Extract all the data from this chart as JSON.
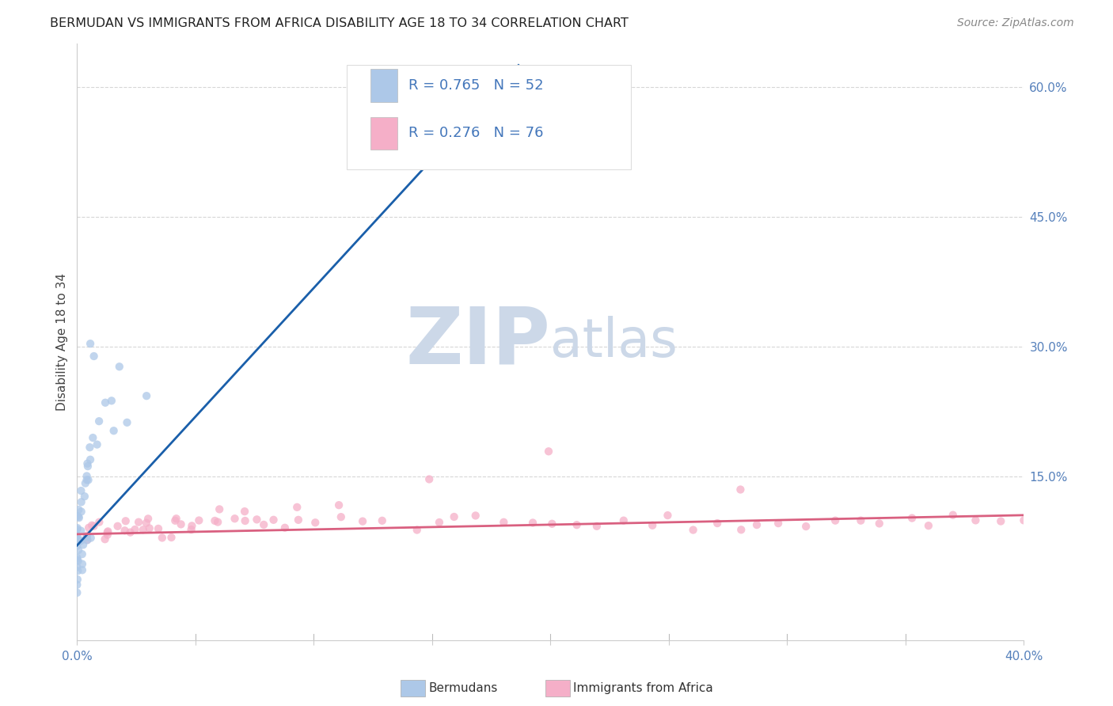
{
  "title": "BERMUDAN VS IMMIGRANTS FROM AFRICA DISABILITY AGE 18 TO 34 CORRELATION CHART",
  "source": "Source: ZipAtlas.com",
  "ylabel": "Disability Age 18 to 34",
  "legend_label_blue": "Bermudans",
  "legend_label_pink": "Immigrants from Africa",
  "R_blue": 0.765,
  "N_blue": 52,
  "R_pink": 0.276,
  "N_pink": 76,
  "color_blue": "#adc8e8",
  "color_pink": "#f5afc8",
  "line_color_blue": "#1a5faa",
  "line_color_pink": "#d96080",
  "background_color": "#ffffff",
  "grid_color": "#cccccc",
  "title_color": "#222222",
  "right_yticks": [
    "60.0%",
    "45.0%",
    "30.0%",
    "15.0%"
  ],
  "right_ytick_vals": [
    0.6,
    0.45,
    0.3,
    0.15
  ],
  "xmin": 0.0,
  "xmax": 0.4,
  "ymin": -0.04,
  "ymax": 0.65,
  "blue_line_x0": 0.0,
  "blue_line_x1": 0.1865,
  "blue_line_y0": 0.07,
  "blue_line_y1": 0.625,
  "pink_line_x0": 0.0,
  "pink_line_x1": 0.4,
  "pink_line_y0": 0.083,
  "pink_line_y1": 0.105,
  "bermudans_x": [
    0.0,
    0.0,
    0.0,
    0.0,
    0.0,
    0.0,
    0.0,
    0.0,
    0.001,
    0.001,
    0.001,
    0.001,
    0.001,
    0.002,
    0.002,
    0.002,
    0.003,
    0.003,
    0.003,
    0.003,
    0.004,
    0.004,
    0.005,
    0.005,
    0.006,
    0.007,
    0.008,
    0.01,
    0.012,
    0.015,
    0.018,
    0.007,
    0.008,
    0.0,
    0.0,
    0.0,
    0.0,
    0.0,
    0.001,
    0.002,
    0.003,
    0.005,
    0.006,
    0.004,
    0.0,
    0.0,
    0.001,
    0.002,
    0.015,
    0.02,
    0.03,
    0.0
  ],
  "bermudans_y": [
    0.07,
    0.08,
    0.09,
    0.1,
    0.085,
    0.095,
    0.075,
    0.065,
    0.09,
    0.1,
    0.11,
    0.08,
    0.07,
    0.13,
    0.12,
    0.11,
    0.155,
    0.145,
    0.14,
    0.13,
    0.16,
    0.15,
    0.17,
    0.165,
    0.185,
    0.195,
    0.19,
    0.22,
    0.23,
    0.24,
    0.27,
    0.3,
    0.29,
    0.06,
    0.055,
    0.05,
    0.045,
    0.04,
    0.06,
    0.065,
    0.07,
    0.075,
    0.08,
    0.072,
    0.035,
    0.03,
    0.04,
    0.05,
    0.2,
    0.22,
    0.24,
    0.005
  ],
  "africa_x": [
    0.005,
    0.007,
    0.009,
    0.01,
    0.012,
    0.015,
    0.018,
    0.02,
    0.022,
    0.025,
    0.028,
    0.03,
    0.032,
    0.035,
    0.038,
    0.04,
    0.042,
    0.045,
    0.048,
    0.05,
    0.055,
    0.06,
    0.065,
    0.07,
    0.075,
    0.08,
    0.085,
    0.09,
    0.095,
    0.1,
    0.11,
    0.12,
    0.13,
    0.14,
    0.15,
    0.16,
    0.17,
    0.18,
    0.19,
    0.2,
    0.21,
    0.22,
    0.23,
    0.24,
    0.25,
    0.26,
    0.27,
    0.28,
    0.29,
    0.3,
    0.31,
    0.32,
    0.33,
    0.34,
    0.35,
    0.36,
    0.37,
    0.38,
    0.39,
    0.4,
    0.003,
    0.006,
    0.01,
    0.015,
    0.02,
    0.025,
    0.03,
    0.04,
    0.05,
    0.06,
    0.07,
    0.09,
    0.11,
    0.15,
    0.2,
    0.28
  ],
  "africa_y": [
    0.09,
    0.085,
    0.09,
    0.095,
    0.085,
    0.09,
    0.095,
    0.09,
    0.1,
    0.095,
    0.1,
    0.09,
    0.095,
    0.09,
    0.1,
    0.095,
    0.1,
    0.095,
    0.09,
    0.1,
    0.095,
    0.1,
    0.09,
    0.095,
    0.1,
    0.095,
    0.1,
    0.095,
    0.1,
    0.095,
    0.1,
    0.095,
    0.1,
    0.095,
    0.1,
    0.095,
    0.1,
    0.095,
    0.1,
    0.095,
    0.1,
    0.095,
    0.1,
    0.095,
    0.1,
    0.095,
    0.1,
    0.095,
    0.1,
    0.095,
    0.1,
    0.095,
    0.1,
    0.095,
    0.1,
    0.095,
    0.1,
    0.1,
    0.095,
    0.1,
    0.075,
    0.08,
    0.085,
    0.09,
    0.085,
    0.09,
    0.085,
    0.09,
    0.1,
    0.11,
    0.1,
    0.11,
    0.12,
    0.155,
    0.175,
    0.135
  ]
}
